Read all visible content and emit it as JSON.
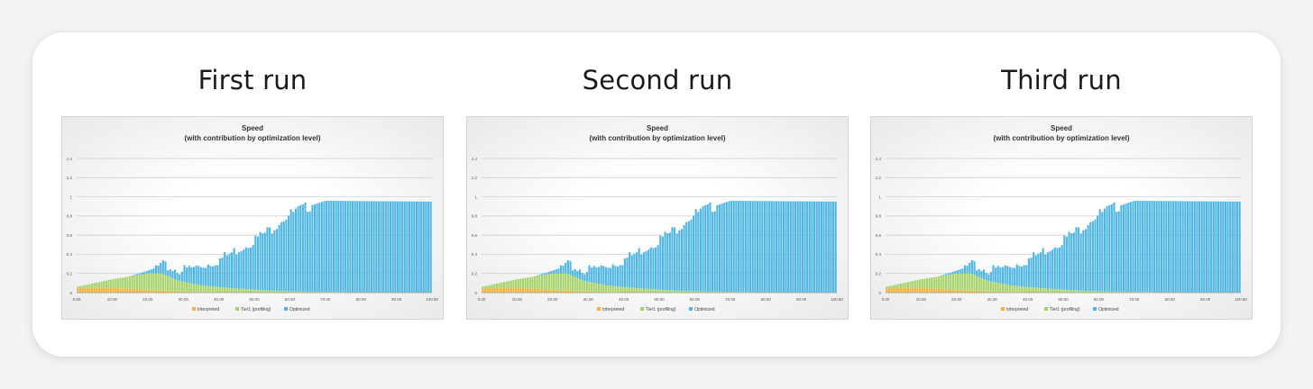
{
  "slide": {
    "runs": [
      {
        "id": "first",
        "label": "First run"
      },
      {
        "id": "second",
        "label": "Second run"
      },
      {
        "id": "third",
        "label": "Third run"
      }
    ]
  },
  "colors": {
    "interpreted": "#f2b233",
    "tier1": "#a6d36a",
    "optimized": "#4fb5e3",
    "grid": "#c8c8c8",
    "text": "#333333"
  },
  "chart_data": [
    {
      "type": "area",
      "title": "Speed",
      "subtitle": "(with contribution by optimization level)",
      "x_ticks": [
        "0.00",
        "10.00",
        "20.00",
        "30.00",
        "40.00",
        "50.00",
        "60.00",
        "70.00",
        "80.00",
        "90.00",
        "100.00"
      ],
      "y_ticks": [
        "0",
        "0.2",
        "0.4",
        "0.6",
        "0.8",
        "1",
        "1.2",
        "1.4"
      ],
      "xlim": [
        0,
        100
      ],
      "ylim": [
        0,
        1.4
      ],
      "grid": true,
      "legend_position": "bottom",
      "series": [
        {
          "name": "Interpreted",
          "x": [
            0,
            5,
            10,
            15,
            20,
            25,
            30,
            40,
            60,
            100
          ],
          "values": [
            0.04,
            0.05,
            0.05,
            0.04,
            0.03,
            0.02,
            0.01,
            0.005,
            0,
            0
          ]
        },
        {
          "name": "Tier1 (profiling)",
          "x": [
            0,
            5,
            10,
            15,
            20,
            24,
            28,
            35,
            45,
            55,
            65,
            100
          ],
          "values": [
            0.02,
            0.05,
            0.09,
            0.13,
            0.17,
            0.18,
            0.12,
            0.07,
            0.04,
            0.02,
            0.01,
            0
          ]
        },
        {
          "name": "Optimized",
          "x": [
            0,
            15,
            20,
            24,
            30,
            35,
            40,
            45,
            50,
            55,
            58,
            62,
            66,
            70,
            100
          ],
          "values": [
            0,
            0,
            0.03,
            0.08,
            0.12,
            0.2,
            0.28,
            0.4,
            0.52,
            0.65,
            0.76,
            0.84,
            0.9,
            0.95,
            0.95
          ]
        }
      ]
    },
    {
      "type": "area",
      "title": "Speed",
      "subtitle": "(with contribution by optimization level)",
      "x_ticks": [
        "0.00",
        "10.00",
        "20.00",
        "30.00",
        "40.00",
        "50.00",
        "60.00",
        "70.00",
        "80.00",
        "90.00",
        "100.00"
      ],
      "y_ticks": [
        "0",
        "0.2",
        "0.4",
        "0.6",
        "0.8",
        "1",
        "1.2",
        "1.4"
      ],
      "xlim": [
        0,
        100
      ],
      "ylim": [
        0,
        1.4
      ],
      "grid": true,
      "legend_position": "bottom",
      "series": [
        {
          "name": "Interpreted",
          "x": [
            0,
            5,
            10,
            15,
            20,
            25,
            30,
            40,
            60,
            100
          ],
          "values": [
            0.04,
            0.05,
            0.05,
            0.04,
            0.03,
            0.02,
            0.01,
            0.005,
            0,
            0
          ]
        },
        {
          "name": "Tier1 (profiling)",
          "x": [
            0,
            5,
            10,
            15,
            20,
            24,
            28,
            35,
            45,
            55,
            65,
            100
          ],
          "values": [
            0.02,
            0.05,
            0.09,
            0.13,
            0.17,
            0.18,
            0.12,
            0.07,
            0.04,
            0.02,
            0.01,
            0
          ]
        },
        {
          "name": "Optimized",
          "x": [
            0,
            15,
            20,
            24,
            30,
            35,
            40,
            45,
            50,
            55,
            58,
            62,
            66,
            70,
            100
          ],
          "values": [
            0,
            0,
            0.03,
            0.08,
            0.12,
            0.2,
            0.28,
            0.4,
            0.52,
            0.65,
            0.76,
            0.84,
            0.9,
            0.95,
            0.95
          ]
        }
      ]
    },
    {
      "type": "area",
      "title": "Speed",
      "subtitle": "(with contribution by optimization level)",
      "x_ticks": [
        "0.00",
        "10.00",
        "20.00",
        "30.00",
        "40.00",
        "50.00",
        "60.00",
        "70.00",
        "80.00",
        "90.00",
        "100.00"
      ],
      "y_ticks": [
        "0",
        "0.2",
        "0.4",
        "0.6",
        "0.8",
        "1",
        "1.2",
        "1.4"
      ],
      "xlim": [
        0,
        100
      ],
      "ylim": [
        0,
        1.4
      ],
      "grid": true,
      "legend_position": "bottom",
      "series": [
        {
          "name": "Interpreted",
          "x": [
            0,
            5,
            10,
            15,
            20,
            25,
            30,
            40,
            60,
            100
          ],
          "values": [
            0.04,
            0.05,
            0.05,
            0.04,
            0.03,
            0.02,
            0.01,
            0.005,
            0,
            0
          ]
        },
        {
          "name": "Tier1 (profiling)",
          "x": [
            0,
            5,
            10,
            15,
            20,
            24,
            28,
            35,
            45,
            55,
            65,
            100
          ],
          "values": [
            0.02,
            0.05,
            0.09,
            0.13,
            0.17,
            0.18,
            0.12,
            0.07,
            0.04,
            0.02,
            0.01,
            0
          ]
        },
        {
          "name": "Optimized",
          "x": [
            0,
            15,
            20,
            24,
            30,
            35,
            40,
            45,
            50,
            55,
            58,
            62,
            66,
            70,
            100
          ],
          "values": [
            0,
            0,
            0.03,
            0.08,
            0.12,
            0.2,
            0.28,
            0.4,
            0.52,
            0.65,
            0.76,
            0.84,
            0.9,
            0.95,
            0.95
          ]
        }
      ]
    }
  ]
}
